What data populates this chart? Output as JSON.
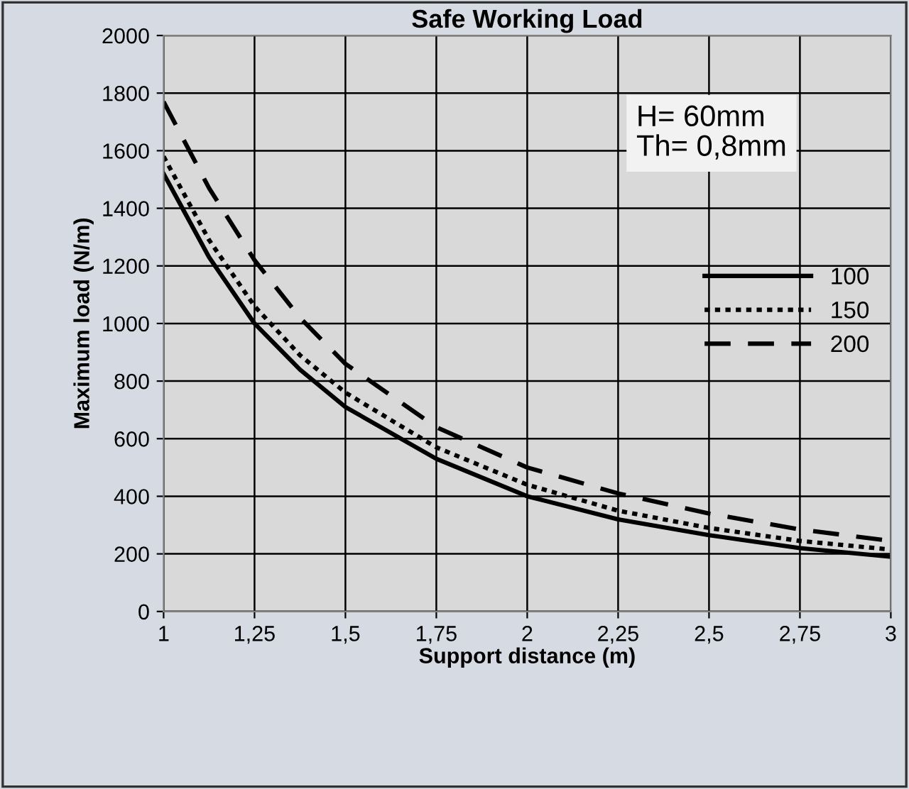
{
  "chart_data": {
    "type": "line",
    "title": "Safe Working Load",
    "xlabel": "Support distance (m)",
    "ylabel": "Maximum load (N/m)",
    "x": [
      1,
      1.125,
      1.25,
      1.375,
      1.5,
      1.75,
      2,
      2.25,
      2.5,
      2.75,
      3
    ],
    "series": [
      {
        "name": "100",
        "color": "#000000",
        "line_style": "solid",
        "values": [
          1520,
          1230,
          1000,
          840,
          710,
          530,
          400,
          320,
          265,
          220,
          190
        ]
      },
      {
        "name": "150",
        "color": "#000000",
        "line_style": "dotted",
        "values": [
          1580,
          1290,
          1060,
          890,
          760,
          570,
          440,
          350,
          290,
          245,
          215
        ]
      },
      {
        "name": "200",
        "color": "#000000",
        "line_style": "dashed",
        "values": [
          1770,
          1470,
          1220,
          1020,
          860,
          640,
          500,
          410,
          340,
          285,
          245
        ]
      }
    ],
    "xlim": [
      1,
      3
    ],
    "xticks": [
      1,
      {
        "value": 1.25,
        "label": "1,25"
      },
      {
        "value": 1.5,
        "label": "1,5"
      },
      {
        "value": 1.75,
        "label": "1,75"
      },
      2,
      {
        "value": 2.25,
        "label": "2,25"
      },
      {
        "value": 2.5,
        "label": "2,5"
      },
      {
        "value": 2.75,
        "label": "2,75"
      },
      3
    ],
    "ylim": [
      0,
      2000
    ],
    "yticks": [
      0,
      200,
      400,
      600,
      800,
      1000,
      1200,
      1400,
      1600,
      1800,
      2000
    ],
    "grid": true,
    "legend": "right",
    "marker": "none",
    "annotations": [
      "H= 60mm",
      "Th= 0,8mm"
    ]
  }
}
